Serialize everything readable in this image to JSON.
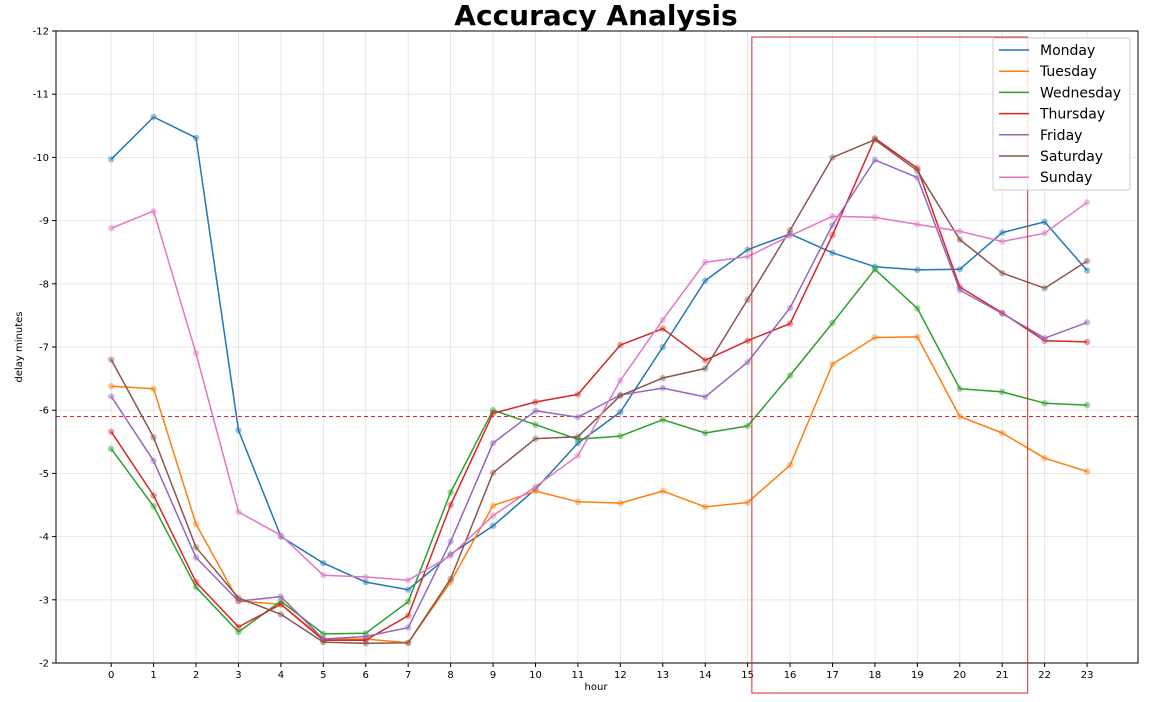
{
  "chart_data": {
    "type": "line",
    "title": "Accuracy Analysis",
    "xlabel": "hour",
    "ylabel": "delay minutes",
    "x": [
      0,
      1,
      2,
      3,
      4,
      5,
      6,
      7,
      8,
      9,
      10,
      11,
      12,
      13,
      14,
      15,
      16,
      17,
      18,
      19,
      20,
      21,
      22,
      23
    ],
    "xticks": [
      "0",
      "1",
      "2",
      "3",
      "4",
      "5",
      "6",
      "7",
      "8",
      "9",
      "10",
      "11",
      "12",
      "13",
      "14",
      "15",
      "16",
      "17",
      "18",
      "19",
      "20",
      "21",
      "22",
      "23"
    ],
    "ylim": [
      -12,
      -2
    ],
    "yaxis_inverted": true,
    "yticks": [
      "-12",
      "-11",
      "-10",
      "-9",
      "-8",
      "-7",
      "-6",
      "-5",
      "-4",
      "-3",
      "-2"
    ],
    "ytick_values": [
      -12,
      -11,
      -10,
      -9,
      -8,
      -7,
      -6,
      -5,
      -4,
      -3,
      -2
    ],
    "grid": true,
    "legend_position": "top-right",
    "reference_line": {
      "y": -5.9,
      "color": "#d62728",
      "style": "dashed"
    },
    "highlight_box": {
      "x_from": 15.1,
      "x_to": 21.6,
      "color": "#d62728"
    },
    "series": [
      {
        "name": "Monday",
        "color": "#1f77b4",
        "values": [
          -9.97,
          -10.64,
          -10.31,
          -5.68,
          -4.0,
          -3.58,
          -3.28,
          -3.16,
          -3.72,
          -4.17,
          -4.75,
          -5.48,
          -5.97,
          -7.0,
          -8.05,
          -8.54,
          -8.79,
          -8.49,
          -8.27,
          -8.22,
          -8.23,
          -8.81,
          -8.98,
          -8.21
        ]
      },
      {
        "name": "Tuesday",
        "color": "#ff7f0e",
        "values": [
          -6.38,
          -6.34,
          -4.2,
          -2.98,
          -2.93,
          -2.38,
          -2.38,
          -2.32,
          -3.28,
          -4.49,
          -4.72,
          -4.55,
          -4.53,
          -4.72,
          -4.47,
          -4.54,
          -5.13,
          -6.73,
          -7.15,
          -7.16,
          -5.9,
          -5.64,
          -5.24,
          -5.03
        ]
      },
      {
        "name": "Wednesday",
        "color": "#2ca02c",
        "values": [
          -5.39,
          -4.48,
          -3.2,
          -2.49,
          -2.98,
          -2.46,
          -2.47,
          -2.97,
          -4.7,
          -6.0,
          -5.77,
          -5.54,
          -5.59,
          -5.85,
          -5.64,
          -5.75,
          -6.55,
          -7.38,
          -8.23,
          -7.61,
          -6.34,
          -6.29,
          -6.11,
          -6.08
        ]
      },
      {
        "name": "Thursday",
        "color": "#d62728",
        "values": [
          -5.66,
          -4.65,
          -3.28,
          -2.57,
          -2.93,
          -2.36,
          -2.36,
          -2.75,
          -4.5,
          -5.95,
          -6.13,
          -6.25,
          -7.03,
          -7.29,
          -6.79,
          -7.1,
          -7.37,
          -8.77,
          -10.3,
          -9.83,
          -7.95,
          -7.54,
          -7.1,
          -7.08
        ]
      },
      {
        "name": "Friday",
        "color": "#9467bd",
        "values": [
          -6.22,
          -5.2,
          -3.67,
          -2.98,
          -3.05,
          -2.38,
          -2.42,
          -2.56,
          -3.92,
          -5.48,
          -5.99,
          -5.89,
          -6.24,
          -6.35,
          -6.21,
          -6.76,
          -7.62,
          -8.93,
          -9.96,
          -9.68,
          -7.9,
          -7.53,
          -7.14,
          -7.39
        ]
      },
      {
        "name": "Saturday",
        "color": "#8c564b",
        "values": [
          -6.8,
          -5.57,
          -3.83,
          -3.03,
          -2.77,
          -2.33,
          -2.31,
          -2.32,
          -3.33,
          -5.01,
          -5.55,
          -5.58,
          -6.23,
          -6.51,
          -6.66,
          -7.75,
          -8.85,
          -10.0,
          -10.28,
          -9.79,
          -8.7,
          -8.17,
          -7.93,
          -8.36
        ]
      },
      {
        "name": "Sunday",
        "color": "#e377c2",
        "values": [
          -8.88,
          -9.15,
          -6.9,
          -4.39,
          -4.02,
          -3.39,
          -3.36,
          -3.31,
          -3.7,
          -4.33,
          -4.79,
          -5.28,
          -6.47,
          -7.43,
          -8.34,
          -8.43,
          -8.76,
          -9.07,
          -9.05,
          -8.94,
          -8.83,
          -8.67,
          -8.8,
          -9.29
        ]
      }
    ]
  }
}
